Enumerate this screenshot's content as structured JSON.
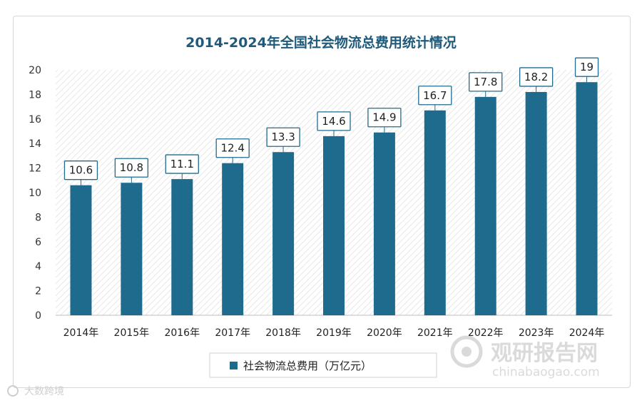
{
  "chart_data": {
    "type": "bar",
    "title": "2014-2024年全国社会物流总费用统计情况",
    "categories": [
      "2014年",
      "2015年",
      "2016年",
      "2017年",
      "2018年",
      "2019年",
      "2020年",
      "2021年",
      "2022年",
      "2023年",
      "2024年"
    ],
    "series": [
      {
        "name": "社会物流总费用（万亿元）",
        "values": [
          10.6,
          10.8,
          11.1,
          12.4,
          13.3,
          14.6,
          14.9,
          16.7,
          17.8,
          18.2,
          19
        ],
        "labels": [
          "10.6",
          "10.8",
          "11.1",
          "12.4",
          "13.3",
          "14.6",
          "14.9",
          "16.7",
          "17.8",
          "18.2",
          "19"
        ]
      }
    ],
    "ylim": [
      0,
      20
    ],
    "yticks": [
      0,
      2,
      4,
      6,
      8,
      10,
      12,
      14,
      16,
      18,
      20
    ],
    "grid": false,
    "legend": "bottom-center",
    "colors": {
      "bar": "#1f6b8e",
      "title": "#1f5a7a",
      "label_border": "#1f6b8e",
      "hatch": "#e6e6e6"
    }
  },
  "watermarks": {
    "site_name": "观研报告网",
    "site_url": "chinabaogao.com",
    "corner": "大数跨境"
  }
}
